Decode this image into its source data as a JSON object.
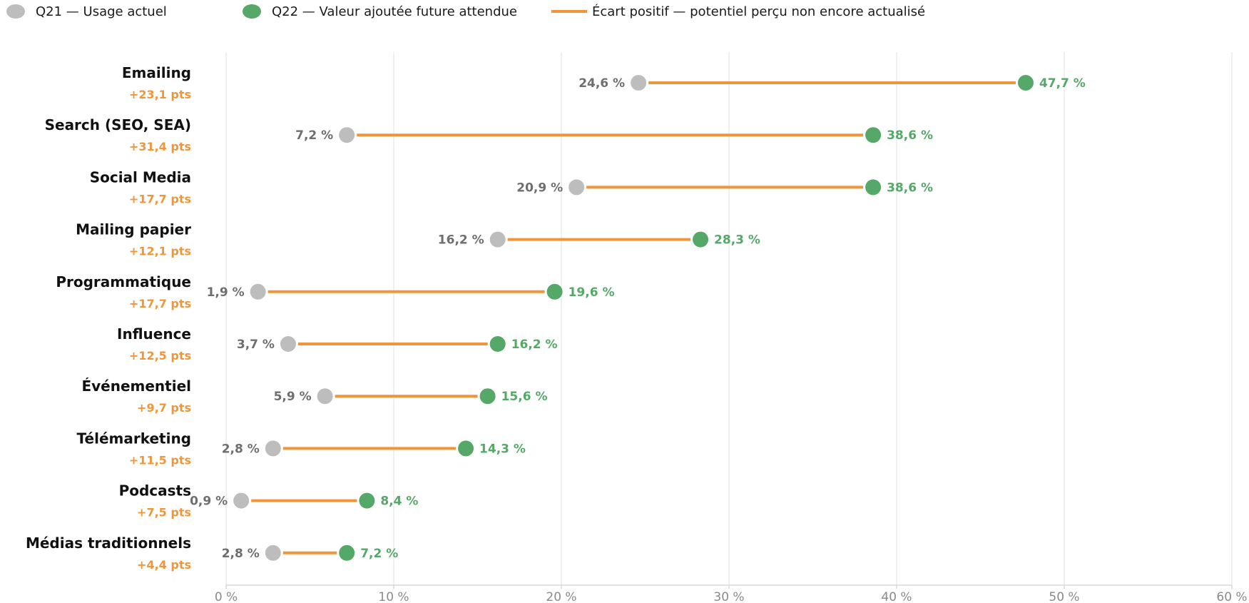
{
  "chart_data": {
    "type": "dumbbell",
    "legend": {
      "q21": "Q21 — Usage actuel",
      "q22": "Q22 — Valeur ajoutée future attendue",
      "gap": "Écart positif — potentiel perçu non encore actualisé"
    },
    "xlim": [
      0,
      60
    ],
    "x_ticks": [
      {
        "value": 0,
        "label": "0 %"
      },
      {
        "value": 10,
        "label": "10 %"
      },
      {
        "value": 20,
        "label": "20 %"
      },
      {
        "value": 30,
        "label": "30 %"
      },
      {
        "value": 40,
        "label": "40 %"
      },
      {
        "value": 50,
        "label": "50 %"
      },
      {
        "value": 60,
        "label": "60 %"
      }
    ],
    "grid": true,
    "legend_position": "top-left",
    "colors": {
      "q21": "#bdbdbd",
      "q22": "#55a868",
      "gap": "#f0963a",
      "q21_text": "#6e6e6e",
      "q22_text": "#55a868",
      "gap_text": "#f0963a",
      "grid": "#e6e6e6"
    },
    "rows": [
      {
        "category": "Emailing",
        "gap": "+23,1 pts",
        "q21": 24.6,
        "q21_label": "24,6 %",
        "q22": 47.7,
        "q22_label": "47,7 %"
      },
      {
        "category": "Search (SEO, SEA)",
        "gap": "+31,4 pts",
        "q21": 7.2,
        "q21_label": "7,2 %",
        "q22": 38.6,
        "q22_label": "38,6 %"
      },
      {
        "category": "Social Media",
        "gap": "+17,7 pts",
        "q21": 20.9,
        "q21_label": "20,9 %",
        "q22": 38.6,
        "q22_label": "38,6 %"
      },
      {
        "category": "Mailing papier",
        "gap": "+12,1 pts",
        "q21": 16.2,
        "q21_label": "16,2 %",
        "q22": 28.3,
        "q22_label": "28,3 %"
      },
      {
        "category": "Programmatique",
        "gap": "+17,7 pts",
        "q21": 1.9,
        "q21_label": "1,9 %",
        "q22": 19.6,
        "q22_label": "19,6 %"
      },
      {
        "category": "Influence",
        "gap": "+12,5 pts",
        "q21": 3.7,
        "q21_label": "3,7 %",
        "q22": 16.2,
        "q22_label": "16,2 %"
      },
      {
        "category": "Événementiel",
        "gap": "+9,7 pts",
        "q21": 5.9,
        "q21_label": "5,9 %",
        "q22": 15.6,
        "q22_label": "15,6 %"
      },
      {
        "category": "Télémarketing",
        "gap": "+11,5 pts",
        "q21": 2.8,
        "q21_label": "2,8 %",
        "q22": 14.3,
        "q22_label": "14,3 %"
      },
      {
        "category": "Podcasts",
        "gap": "+7,5 pts",
        "q21": 0.9,
        "q21_label": "0,9 %",
        "q22": 8.4,
        "q22_label": "8,4 %"
      },
      {
        "category": "Médias traditionnels",
        "gap": "+4,4 pts",
        "q21": 2.8,
        "q21_label": "2,8 %",
        "q22": 7.2,
        "q22_label": "7,2 %"
      }
    ]
  }
}
